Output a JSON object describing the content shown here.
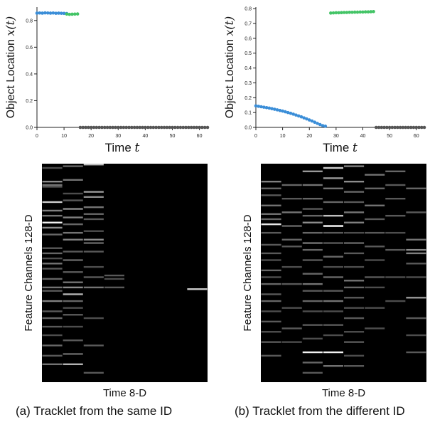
{
  "captions": {
    "a": "(a) Tracklet from the same ID",
    "b": "(b) Tracklet from the different ID"
  },
  "colors": {
    "seg1": "#3b8ed8",
    "seg2": "#43c466",
    "missing": "#555555",
    "axis": "#222222",
    "heat_bg": "#000000"
  },
  "chart_data": [
    {
      "type": "scatter",
      "panel": "a",
      "xlabel": "Time",
      "xlabel_var": "t",
      "ylabel": "Object Location",
      "ylabel_var": "x(t)",
      "xlim": [
        0,
        63
      ],
      "ylim": [
        0,
        0.9
      ],
      "xticks": [
        0,
        10,
        20,
        30,
        40,
        50,
        60
      ],
      "yticks": [
        0.0,
        0.2,
        0.4,
        0.6,
        0.8
      ],
      "ytick_labels": [
        "0.0",
        "0.2",
        "0.4",
        "0.6",
        "0.8"
      ],
      "series": [
        {
          "color": "#3b8ed8",
          "x": [
            0,
            1,
            2,
            3,
            4,
            5,
            6,
            7,
            8,
            9,
            10,
            11
          ],
          "y": [
            0.855,
            0.856,
            0.855,
            0.857,
            0.856,
            0.855,
            0.856,
            0.854,
            0.855,
            0.854,
            0.853,
            0.852
          ]
        },
        {
          "color": "#43c466",
          "x": [
            11,
            12,
            13,
            14,
            15
          ],
          "y": [
            0.848,
            0.846,
            0.847,
            0.848,
            0.849
          ]
        },
        {
          "color": "#555555",
          "x": [
            16,
            17,
            18,
            19,
            20,
            21,
            22,
            23,
            24,
            25,
            26,
            27,
            28,
            29,
            30,
            31,
            32,
            33,
            34,
            35,
            36,
            37,
            38,
            39,
            40,
            41,
            42,
            43,
            44,
            45,
            46,
            47,
            48,
            49,
            50,
            51,
            52,
            53,
            54,
            55,
            56,
            57,
            58,
            59,
            60,
            61,
            62,
            63
          ],
          "y": [
            0,
            0,
            0,
            0,
            0,
            0,
            0,
            0,
            0,
            0,
            0,
            0,
            0,
            0,
            0,
            0,
            0,
            0,
            0,
            0,
            0,
            0,
            0,
            0,
            0,
            0,
            0,
            0,
            0,
            0,
            0,
            0,
            0,
            0,
            0,
            0,
            0,
            0,
            0,
            0,
            0,
            0,
            0,
            0,
            0,
            0,
            0,
            0
          ]
        }
      ]
    },
    {
      "type": "scatter",
      "panel": "b",
      "xlabel": "Time",
      "xlabel_var": "t",
      "ylabel": "Object Location",
      "ylabel_var": "x(t)",
      "xlim": [
        0,
        63
      ],
      "ylim": [
        0,
        0.81
      ],
      "xticks": [
        0,
        10,
        20,
        30,
        40,
        50,
        60
      ],
      "yticks": [
        0.0,
        0.1,
        0.2,
        0.3,
        0.4,
        0.5,
        0.6,
        0.7,
        0.8
      ],
      "ytick_labels": [
        "0.0",
        "0.1",
        "0.2",
        "0.3",
        "0.4",
        "0.5",
        "0.6",
        "0.7",
        "0.8"
      ],
      "series": [
        {
          "color": "#3b8ed8",
          "x": [
            0,
            1,
            2,
            3,
            4,
            5,
            6,
            7,
            8,
            9,
            10,
            11,
            12,
            13,
            14,
            15,
            16,
            17,
            18,
            19,
            20,
            21,
            22,
            23,
            24,
            25,
            26
          ],
          "y": [
            0.145,
            0.142,
            0.139,
            0.136,
            0.133,
            0.13,
            0.126,
            0.122,
            0.118,
            0.114,
            0.11,
            0.105,
            0.1,
            0.095,
            0.089,
            0.083,
            0.077,
            0.071,
            0.064,
            0.057,
            0.05,
            0.043,
            0.035,
            0.027,
            0.019,
            0.012,
            0.008
          ]
        },
        {
          "color": "#43c466",
          "x": [
            28,
            29,
            30,
            31,
            32,
            33,
            34,
            35,
            36,
            37,
            38,
            39,
            40,
            41,
            42,
            43,
            44
          ],
          "y": [
            0.77,
            0.771,
            0.772,
            0.772,
            0.773,
            0.774,
            0.774,
            0.775,
            0.775,
            0.776,
            0.776,
            0.777,
            0.777,
            0.778,
            0.778,
            0.779,
            0.78
          ]
        },
        {
          "color": "#555555",
          "x": [
            45,
            46,
            47,
            48,
            49,
            50,
            51,
            52,
            53,
            54,
            55,
            56,
            57,
            58,
            59,
            60,
            61,
            62,
            63
          ],
          "y": [
            0,
            0,
            0,
            0,
            0,
            0,
            0,
            0,
            0,
            0,
            0,
            0,
            0,
            0,
            0,
            0,
            0,
            0,
            0
          ]
        }
      ]
    },
    {
      "type": "heatmap",
      "panel": "a",
      "xlabel": "Time 8-D",
      "ylabel": "Feature Channels 128-D",
      "columns": 8,
      "rows": 128,
      "value_range": [
        0,
        1
      ],
      "cells": [
        [
          0,
          2,
          0.3
        ],
        [
          0,
          10,
          0.55
        ],
        [
          0,
          12,
          0.45
        ],
        [
          0,
          13,
          0.35
        ],
        [
          0,
          22,
          0.8
        ],
        [
          0,
          27,
          0.5
        ],
        [
          0,
          30,
          0.45
        ],
        [
          0,
          34,
          0.95
        ],
        [
          0,
          37,
          0.55
        ],
        [
          0,
          41,
          0.4
        ],
        [
          0,
          49,
          0.35
        ],
        [
          0,
          52,
          0.4
        ],
        [
          0,
          55,
          0.3
        ],
        [
          0,
          58,
          0.45
        ],
        [
          0,
          61,
          0.35
        ],
        [
          0,
          67,
          0.4
        ],
        [
          0,
          72,
          0.45
        ],
        [
          0,
          74,
          0.35
        ],
        [
          0,
          80,
          0.5
        ],
        [
          0,
          86,
          0.35
        ],
        [
          0,
          90,
          0.4
        ],
        [
          0,
          95,
          0.35
        ],
        [
          0,
          100,
          0.3
        ],
        [
          0,
          106,
          0.4
        ],
        [
          0,
          112,
          0.35
        ],
        [
          0,
          117,
          0.45
        ],
        [
          1,
          1,
          0.4
        ],
        [
          1,
          9,
          0.45
        ],
        [
          1,
          17,
          0.3
        ],
        [
          1,
          21,
          0.35
        ],
        [
          1,
          26,
          0.55
        ],
        [
          1,
          31,
          0.5
        ],
        [
          1,
          35,
          0.4
        ],
        [
          1,
          40,
          0.45
        ],
        [
          1,
          44,
          0.5
        ],
        [
          1,
          51,
          0.35
        ],
        [
          1,
          56,
          0.4
        ],
        [
          1,
          63,
          0.35
        ],
        [
          1,
          69,
          0.45
        ],
        [
          1,
          72,
          0.55
        ],
        [
          1,
          76,
          0.7
        ],
        [
          1,
          80,
          0.4
        ],
        [
          1,
          84,
          0.3
        ],
        [
          1,
          88,
          0.35
        ],
        [
          1,
          95,
          0.3
        ],
        [
          1,
          103,
          0.35
        ],
        [
          1,
          111,
          0.4
        ],
        [
          1,
          117,
          0.7
        ],
        [
          2,
          0,
          0.75
        ],
        [
          2,
          16,
          0.6
        ],
        [
          2,
          19,
          0.55
        ],
        [
          2,
          25,
          0.45
        ],
        [
          2,
          29,
          0.4
        ],
        [
          2,
          32,
          0.35
        ],
        [
          2,
          39,
          0.3
        ],
        [
          2,
          44,
          0.55
        ],
        [
          2,
          46,
          0.4
        ],
        [
          2,
          51,
          0.35
        ],
        [
          2,
          60,
          0.3
        ],
        [
          2,
          66,
          0.35
        ],
        [
          2,
          72,
          0.45
        ],
        [
          2,
          90,
          0.3
        ],
        [
          2,
          106,
          0.35
        ],
        [
          2,
          122,
          0.35
        ],
        [
          3,
          65,
          0.35
        ],
        [
          3,
          67,
          0.3
        ],
        [
          3,
          72,
          0.35
        ],
        [
          7,
          73,
          0.8
        ]
      ]
    },
    {
      "type": "heatmap",
      "panel": "b",
      "xlabel": "Time 8-D",
      "ylabel": "Feature Channels 128-D",
      "columns": 8,
      "rows": 128,
      "value_range": [
        0,
        1
      ],
      "cells": [
        [
          0,
          10,
          0.5
        ],
        [
          0,
          14,
          0.4
        ],
        [
          0,
          18,
          0.35
        ],
        [
          0,
          24,
          0.45
        ],
        [
          0,
          29,
          0.45
        ],
        [
          0,
          32,
          0.4
        ],
        [
          0,
          35,
          0.9
        ],
        [
          0,
          40,
          0.35
        ],
        [
          0,
          47,
          0.35
        ],
        [
          0,
          52,
          0.35
        ],
        [
          0,
          56,
          0.3
        ],
        [
          0,
          62,
          0.4
        ],
        [
          0,
          66,
          0.3
        ],
        [
          0,
          70,
          0.4
        ],
        [
          0,
          76,
          0.35
        ],
        [
          0,
          80,
          0.4
        ],
        [
          0,
          86,
          0.3
        ],
        [
          0,
          92,
          0.35
        ],
        [
          0,
          98,
          0.3
        ],
        [
          0,
          104,
          0.35
        ],
        [
          0,
          112,
          0.35
        ],
        [
          1,
          12,
          0.4
        ],
        [
          1,
          20,
          0.35
        ],
        [
          1,
          28,
          0.45
        ],
        [
          1,
          36,
          0.4
        ],
        [
          1,
          44,
          0.4
        ],
        [
          1,
          48,
          0.35
        ],
        [
          1,
          60,
          0.3
        ],
        [
          1,
          70,
          0.35
        ],
        [
          1,
          84,
          0.3
        ],
        [
          1,
          96,
          0.35
        ],
        [
          1,
          104,
          0.3
        ],
        [
          2,
          4,
          0.6
        ],
        [
          2,
          12,
          0.45
        ],
        [
          2,
          20,
          0.4
        ],
        [
          2,
          26,
          0.35
        ],
        [
          2,
          30,
          0.4
        ],
        [
          2,
          34,
          0.55
        ],
        [
          2,
          40,
          0.4
        ],
        [
          2,
          46,
          0.45
        ],
        [
          2,
          50,
          0.4
        ],
        [
          2,
          56,
          0.35
        ],
        [
          2,
          64,
          0.4
        ],
        [
          2,
          70,
          0.45
        ],
        [
          2,
          74,
          0.35
        ],
        [
          2,
          80,
          0.4
        ],
        [
          2,
          86,
          0.3
        ],
        [
          2,
          94,
          0.35
        ],
        [
          2,
          102,
          0.3
        ],
        [
          2,
          110,
          0.95
        ],
        [
          2,
          116,
          0.4
        ],
        [
          2,
          122,
          0.35
        ],
        [
          3,
          2,
          0.8
        ],
        [
          3,
          8,
          0.6
        ],
        [
          3,
          14,
          0.45
        ],
        [
          3,
          22,
          0.4
        ],
        [
          3,
          30,
          0.75
        ],
        [
          3,
          36,
          1.0
        ],
        [
          3,
          40,
          0.35
        ],
        [
          3,
          46,
          0.35
        ],
        [
          3,
          54,
          0.4
        ],
        [
          3,
          60,
          0.3
        ],
        [
          3,
          66,
          0.4
        ],
        [
          3,
          74,
          0.35
        ],
        [
          3,
          80,
          0.45
        ],
        [
          3,
          86,
          0.3
        ],
        [
          3,
          94,
          0.35
        ],
        [
          3,
          100,
          0.3
        ],
        [
          3,
          110,
          0.95
        ],
        [
          3,
          118,
          0.45
        ],
        [
          4,
          1,
          0.5
        ],
        [
          4,
          10,
          0.55
        ],
        [
          4,
          16,
          0.4
        ],
        [
          4,
          22,
          0.35
        ],
        [
          4,
          28,
          0.45
        ],
        [
          4,
          34,
          0.5
        ],
        [
          4,
          40,
          0.3
        ],
        [
          4,
          46,
          0.4
        ],
        [
          4,
          52,
          0.35
        ],
        [
          4,
          60,
          0.3
        ],
        [
          4,
          68,
          0.45
        ],
        [
          4,
          72,
          0.4
        ],
        [
          4,
          78,
          0.35
        ],
        [
          4,
          84,
          0.3
        ],
        [
          4,
          90,
          0.35
        ],
        [
          4,
          98,
          0.3
        ],
        [
          4,
          104,
          0.35
        ],
        [
          4,
          112,
          0.3
        ],
        [
          4,
          118,
          0.35
        ],
        [
          5,
          6,
          0.45
        ],
        [
          5,
          14,
          0.4
        ],
        [
          5,
          24,
          0.45
        ],
        [
          5,
          32,
          0.35
        ],
        [
          5,
          40,
          0.35
        ],
        [
          5,
          48,
          0.35
        ],
        [
          5,
          56,
          0.3
        ],
        [
          5,
          66,
          0.35
        ],
        [
          5,
          72,
          0.3
        ],
        [
          5,
          84,
          0.3
        ],
        [
          5,
          96,
          0.3
        ],
        [
          6,
          4,
          0.4
        ],
        [
          6,
          12,
          0.35
        ],
        [
          6,
          20,
          0.35
        ],
        [
          6,
          30,
          0.35
        ],
        [
          6,
          40,
          0.3
        ],
        [
          6,
          50,
          0.35
        ],
        [
          6,
          66,
          0.3
        ],
        [
          6,
          80,
          0.3
        ],
        [
          7,
          14,
          0.4
        ],
        [
          7,
          28,
          0.35
        ],
        [
          7,
          44,
          0.45
        ],
        [
          7,
          50,
          0.55
        ],
        [
          7,
          52,
          0.5
        ],
        [
          7,
          58,
          0.35
        ],
        [
          7,
          66,
          0.3
        ],
        [
          7,
          78,
          0.6
        ],
        [
          7,
          90,
          0.35
        ],
        [
          7,
          100,
          0.3
        ],
        [
          7,
          110,
          0.35
        ]
      ]
    }
  ]
}
